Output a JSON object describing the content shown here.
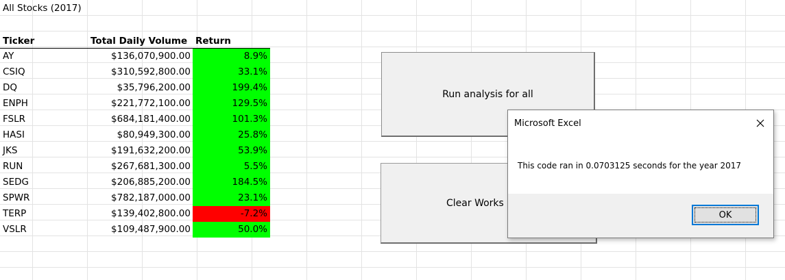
{
  "sheet": {
    "title": "All Stocks (2017)",
    "headers": {
      "ticker": "Ticker",
      "volume": "Total Daily Volume",
      "return": "Return"
    },
    "rows": [
      {
        "ticker": "AY",
        "volume": "$136,070,900.00",
        "return": "8.9%"
      },
      {
        "ticker": "CSIQ",
        "volume": "$310,592,800.00",
        "return": "33.1%"
      },
      {
        "ticker": "DQ",
        "volume": "$35,796,200.00",
        "return": "199.4%"
      },
      {
        "ticker": "ENPH",
        "volume": "$221,772,100.00",
        "return": "129.5%"
      },
      {
        "ticker": "FSLR",
        "volume": "$684,181,400.00",
        "return": "101.3%"
      },
      {
        "ticker": "HASI",
        "volume": "$80,949,300.00",
        "return": "25.8%"
      },
      {
        "ticker": "JKS",
        "volume": "$191,632,200.00",
        "return": "53.9%"
      },
      {
        "ticker": "RUN",
        "volume": "$267,681,300.00",
        "return": "5.5%"
      },
      {
        "ticker": "SEDG",
        "volume": "$206,885,200.00",
        "return": "184.5%"
      },
      {
        "ticker": "SPWR",
        "volume": "$782,187,000.00",
        "return": "23.1%"
      },
      {
        "ticker": "TERP",
        "volume": "$139,402,800.00",
        "return": "-7.2%"
      },
      {
        "ticker": "VSLR",
        "volume": "$109,487,900.00",
        "return": "50.0%"
      }
    ],
    "colors": {
      "positive": "#00ff00",
      "negative": "#ff0000"
    }
  },
  "buttons": {
    "run_label": "Run analysis for all",
    "clear_label": "Clear Works"
  },
  "dialog": {
    "title": "Microsoft Excel",
    "message": "This code ran in 0.0703125 seconds for the year 2017",
    "ok_label": "OK",
    "close_icon": "close-icon"
  }
}
